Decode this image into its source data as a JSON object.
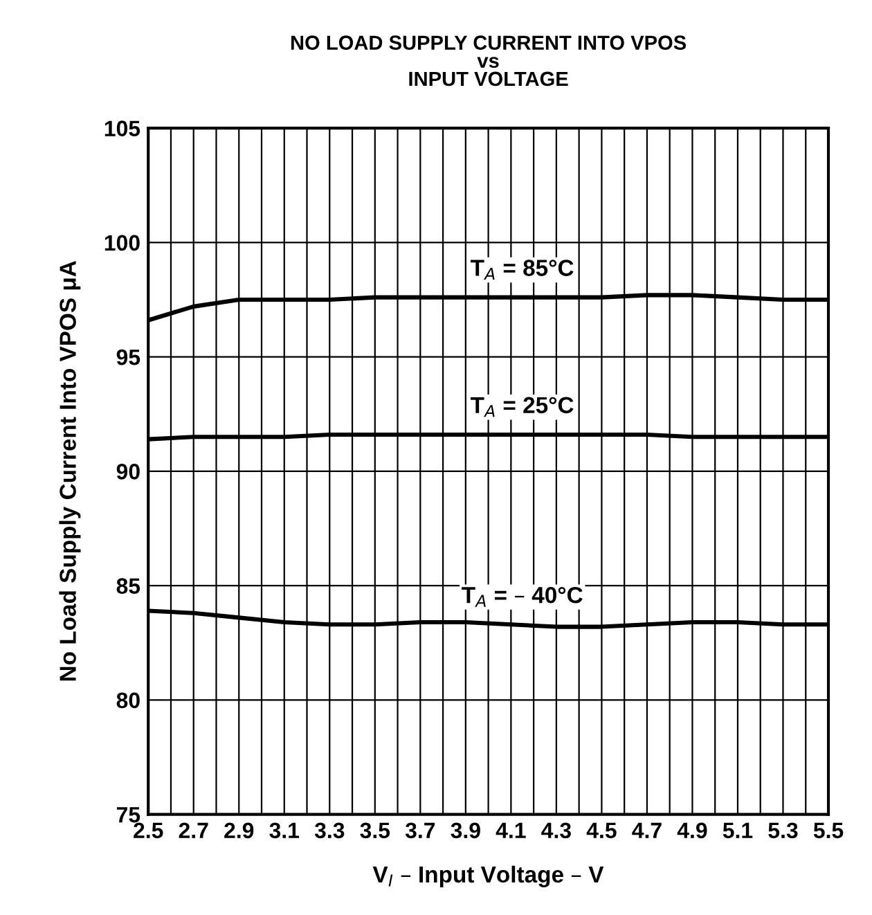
{
  "chart_data": {
    "type": "line",
    "title": "NO LOAD SUPPLY CURRENT INTO VPOS\nvs\nINPUT VOLTAGE",
    "xlabel": "V$_{I}$ – Input Voltage – V",
    "ylabel": "No Load Supply Current Into VPOS μA",
    "x": [
      2.5,
      2.7,
      2.9,
      3.1,
      3.3,
      3.5,
      3.7,
      3.9,
      4.1,
      4.3,
      4.5,
      4.7,
      4.9,
      5.1,
      5.3,
      5.5
    ],
    "series": [
      {
        "name": "T$_{A}$ = 85°C",
        "color": "#000000",
        "values": [
          96.6,
          97.2,
          97.5,
          97.5,
          97.5,
          97.6,
          97.6,
          97.6,
          97.6,
          97.6,
          97.6,
          97.7,
          97.7,
          97.6,
          97.5,
          97.5
        ]
      },
      {
        "name": "T$_{A}$ = 25°C",
        "color": "#000000",
        "values": [
          91.4,
          91.5,
          91.5,
          91.5,
          91.6,
          91.6,
          91.6,
          91.6,
          91.6,
          91.6,
          91.6,
          91.6,
          91.5,
          91.5,
          91.5,
          91.5
        ]
      },
      {
        "name": "T$_{A}$ = – 40°C",
        "color": "#000000",
        "values": [
          83.9,
          83.8,
          83.6,
          83.4,
          83.3,
          83.3,
          83.4,
          83.4,
          83.3,
          83.2,
          83.2,
          83.3,
          83.4,
          83.4,
          83.3,
          83.3
        ]
      }
    ],
    "xlim": [
      2.5,
      5.5
    ],
    "ylim": [
      75,
      105
    ],
    "xticks": [
      2.5,
      {
        "value": 2.6,
        "label": null
      },
      2.7,
      {
        "value": 2.8,
        "label": null
      },
      2.9,
      {
        "value": 3.0,
        "label": null
      },
      3.1,
      {
        "value": 3.2,
        "label": null
      },
      3.3,
      {
        "value": 3.4,
        "label": null
      },
      3.5,
      {
        "value": 3.6,
        "label": null
      },
      3.7,
      {
        "value": 3.8,
        "label": null
      },
      3.9,
      {
        "value": 4.0,
        "label": null
      },
      4.1,
      {
        "value": 4.2,
        "label": null
      },
      4.3,
      {
        "value": 4.4,
        "label": null
      },
      4.5,
      {
        "value": 4.6,
        "label": null
      },
      4.7,
      {
        "value": 4.8,
        "label": null
      },
      4.9,
      {
        "value": 5.0,
        "label": null
      },
      5.1,
      {
        "value": 5.2,
        "label": null
      },
      5.3,
      {
        "value": 5.4,
        "label": null
      },
      5.5
    ],
    "yticks": [
      75,
      80,
      85,
      90,
      95,
      100,
      105
    ],
    "grid": true,
    "legend": false,
    "marker": "none",
    "line_style": "solid"
  }
}
